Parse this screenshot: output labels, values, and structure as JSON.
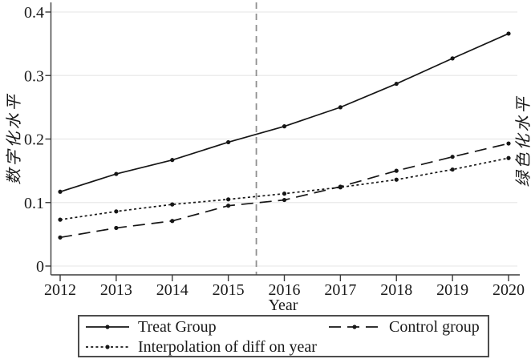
{
  "chart_data": {
    "type": "line",
    "title": "",
    "xlabel": "Year",
    "ylabel_left": "数字化水平",
    "ylabel_right": "绿色化水平",
    "x": [
      2012,
      2013,
      2014,
      2015,
      2016,
      2017,
      2018,
      2019,
      2020
    ],
    "xtick_labels": [
      "2012",
      "2013",
      "2014",
      "2015",
      "2016",
      "2017",
      "2018",
      "2019",
      "2020"
    ],
    "xlim": [
      2012,
      2020
    ],
    "ylim": [
      0,
      0.4
    ],
    "yticks": [
      0,
      0.1,
      0.2,
      0.3,
      0.4
    ],
    "ytick_labels": [
      "0",
      "0.1",
      "0.2",
      "0.3",
      "0.4"
    ],
    "grid": "horizontal-light",
    "reference_line_x": 2015.5,
    "legend_position": "bottom-box",
    "series": [
      {
        "name": "Treat Group",
        "style": "solid",
        "marker": "dot",
        "values": [
          0.117,
          0.145,
          0.167,
          0.195,
          0.22,
          0.25,
          0.287,
          0.327,
          0.366
        ]
      },
      {
        "name": "Control group",
        "style": "long-dash",
        "marker": "dot",
        "values": [
          0.045,
          0.06,
          0.071,
          0.095,
          0.104,
          0.125,
          0.15,
          0.172,
          0.193
        ]
      },
      {
        "name": "Interpolation of diff on year",
        "style": "dotted",
        "marker": "dot",
        "values": [
          0.073,
          0.086,
          0.097,
          0.105,
          0.114,
          0.124,
          0.136,
          0.152,
          0.17
        ]
      }
    ],
    "colors": {
      "line": "#161616",
      "grid": "#e9e9e9",
      "axis": "#3c3c3c",
      "text": "#1a1a1a",
      "reference_line": "#8f8f8f",
      "background": "#ffffff"
    }
  }
}
